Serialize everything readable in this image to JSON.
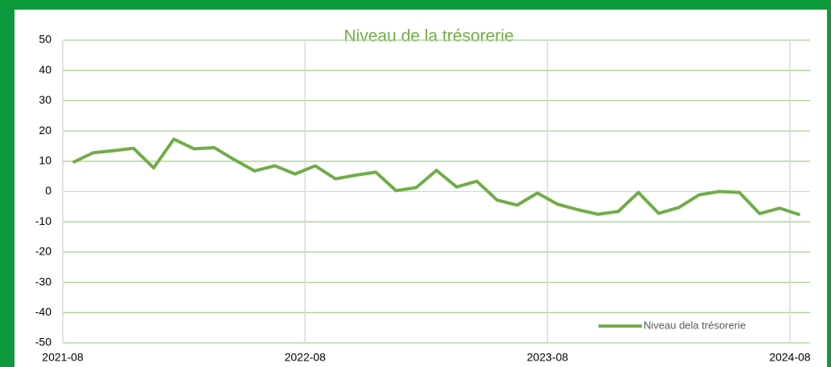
{
  "chart_data": {
    "type": "line",
    "title": "Niveau de la trésorerie",
    "x": [
      "2021-08",
      "2021-09",
      "2021-10",
      "2021-11",
      "2021-12",
      "2022-01",
      "2022-02",
      "2022-03",
      "2022-04",
      "2022-05",
      "2022-06",
      "2022-07",
      "2022-08",
      "2022-09",
      "2022-10",
      "2022-11",
      "2022-12",
      "2023-01",
      "2023-02",
      "2023-03",
      "2023-04",
      "2023-05",
      "2023-06",
      "2023-07",
      "2023-08",
      "2023-09",
      "2023-10",
      "2023-11",
      "2023-12",
      "2024-01",
      "2024-02",
      "2024-03",
      "2024-04",
      "2024-05",
      "2024-06",
      "2024-07",
      "2024-08"
    ],
    "series": [
      {
        "name": "Niveau dela trésorerie",
        "color": "#70ad47",
        "values": [
          9.6,
          12.8,
          13.5,
          14.3,
          7.8,
          17.3,
          14.1,
          14.5,
          10.5,
          6.8,
          8.5,
          5.8,
          8.5,
          4.2,
          5.4,
          6.4,
          0.3,
          1.3,
          7,
          1.5,
          3.4,
          -2.8,
          -4.5,
          -0.5,
          -4.2,
          -6,
          -7.5,
          -6.6,
          -0.3,
          -7.2,
          -5.3,
          -1.1,
          0,
          -0.3,
          -7.3,
          -5.5,
          -7.7
        ]
      }
    ],
    "xlim": [
      "2021-08",
      "2024-09"
    ],
    "xticks": [
      "2021-08",
      "2022-08",
      "2023-08",
      "2024-08"
    ],
    "ylim": [
      -50,
      50
    ],
    "yticks": [
      -50,
      -40,
      -30,
      -20,
      -10,
      0,
      10,
      20,
      30,
      40,
      50
    ],
    "grid": true,
    "legend": "bottom-right"
  }
}
